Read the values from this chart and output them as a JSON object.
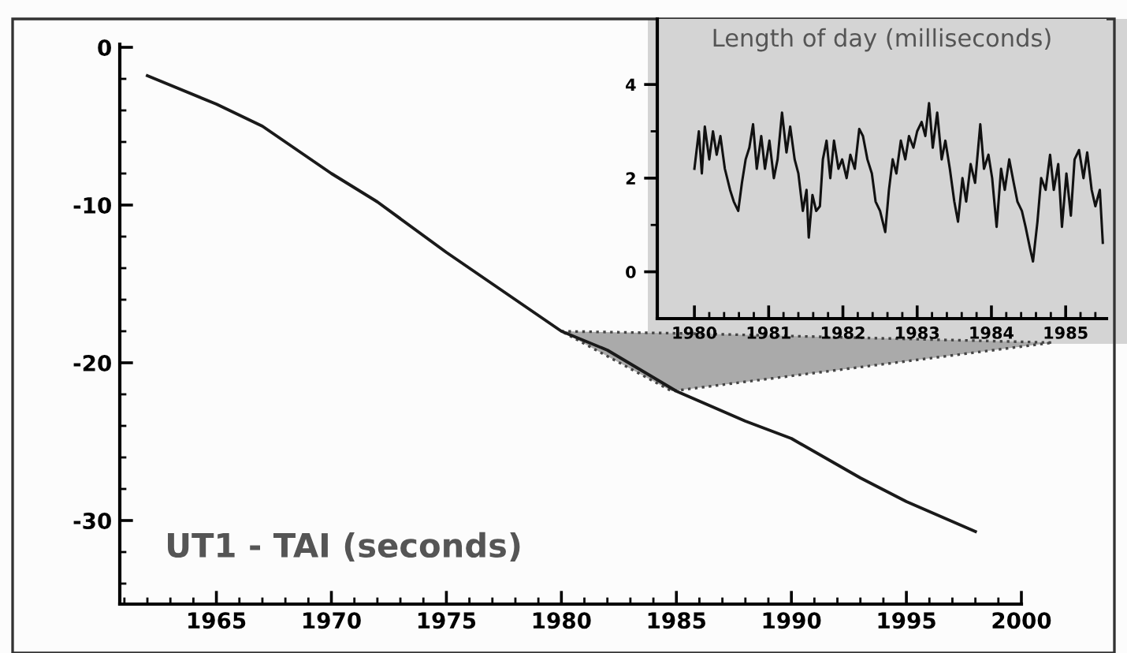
{
  "chart_data": [
    {
      "type": "line",
      "ylabel": "UT1 - TAI (seconds)",
      "x": [
        1962,
        1965,
        1967,
        1970,
        1972,
        1975,
        1977,
        1980,
        1982,
        1983.5,
        1985,
        1988,
        1990,
        1993,
        1995,
        1998
      ],
      "series": [
        {
          "color": "#1a1a1a",
          "values": [
            -1.8,
            -3.6,
            -5.0,
            -8.0,
            -9.8,
            -13.0,
            -15.0,
            -18.0,
            -19.2,
            -20.5,
            -21.8,
            -23.7,
            -24.8,
            -27.3,
            -28.8,
            -30.7
          ]
        }
      ],
      "xlim": [
        1960.8,
        2000
      ],
      "ylim": [
        -35.3,
        0.2
      ],
      "xticks": [
        {
          "value": 1961,
          "label": null
        },
        {
          "value": 1962,
          "label": null
        },
        {
          "value": 1963,
          "label": null
        },
        {
          "value": 1964,
          "label": null
        },
        1965,
        {
          "value": 1966,
          "label": null
        },
        {
          "value": 1967,
          "label": null
        },
        {
          "value": 1968,
          "label": null
        },
        {
          "value": 1969,
          "label": null
        },
        1970,
        {
          "value": 1971,
          "label": null
        },
        {
          "value": 1972,
          "label": null
        },
        {
          "value": 1973,
          "label": null
        },
        {
          "value": 1974,
          "label": null
        },
        1975,
        {
          "value": 1976,
          "label": null
        },
        {
          "value": 1977,
          "label": null
        },
        {
          "value": 1978,
          "label": null
        },
        {
          "value": 1979,
          "label": null
        },
        1980,
        {
          "value": 1981,
          "label": null
        },
        {
          "value": 1982,
          "label": null
        },
        {
          "value": 1983,
          "label": null
        },
        {
          "value": 1984,
          "label": null
        },
        1985,
        {
          "value": 1986,
          "label": null
        },
        {
          "value": 1987,
          "label": null
        },
        {
          "value": 1988,
          "label": null
        },
        {
          "value": 1989,
          "label": null
        },
        1990,
        {
          "value": 1991,
          "label": null
        },
        {
          "value": 1992,
          "label": null
        },
        {
          "value": 1993,
          "label": null
        },
        {
          "value": 1994,
          "label": null
        },
        1995,
        {
          "value": 1996,
          "label": null
        },
        {
          "value": 1997,
          "label": null
        },
        {
          "value": 1998,
          "label": null
        },
        {
          "value": 1999,
          "label": null
        },
        2000
      ],
      "yticks": [
        0,
        {
          "value": -2,
          "label": null
        },
        {
          "value": -4,
          "label": null
        },
        {
          "value": -6,
          "label": null
        },
        {
          "value": -8,
          "label": null
        },
        -10,
        {
          "value": -12,
          "label": null
        },
        {
          "value": -14,
          "label": null
        },
        {
          "value": -16,
          "label": null
        },
        {
          "value": -18,
          "label": null
        },
        -20,
        {
          "value": -22,
          "label": null
        },
        {
          "value": -24,
          "label": null
        },
        {
          "value": -26,
          "label": null
        },
        {
          "value": -28,
          "label": null
        },
        -30,
        {
          "value": -32,
          "label": null
        },
        {
          "value": -34,
          "label": null
        }
      ],
      "grid": false,
      "legend": false,
      "marker": "none",
      "line_style": "solid"
    },
    {
      "type": "line",
      "title": "Length of day (milliseconds)",
      "x": [
        1980.0,
        1980.06,
        1980.1,
        1980.14,
        1980.2,
        1980.25,
        1980.3,
        1980.35,
        1980.41,
        1980.48,
        1980.53,
        1980.59,
        1980.64,
        1980.69,
        1980.74,
        1980.79,
        1980.84,
        1980.9,
        1980.95,
        1981.01,
        1981.07,
        1981.12,
        1981.18,
        1981.24,
        1981.29,
        1981.35,
        1981.4,
        1981.46,
        1981.51,
        1981.54,
        1981.59,
        1981.64,
        1981.69,
        1981.73,
        1981.78,
        1981.83,
        1981.88,
        1981.94,
        1981.99,
        1982.05,
        1982.1,
        1982.16,
        1982.22,
        1982.27,
        1982.33,
        1982.39,
        1982.44,
        1982.5,
        1982.57,
        1982.62,
        1982.67,
        1982.72,
        1982.78,
        1982.84,
        1982.89,
        1982.95,
        1983.0,
        1983.06,
        1983.11,
        1983.16,
        1983.21,
        1983.27,
        1983.33,
        1983.38,
        1983.44,
        1983.5,
        1983.55,
        1983.61,
        1983.66,
        1983.72,
        1983.78,
        1983.85,
        1983.9,
        1983.96,
        1984.01,
        1984.07,
        1984.13,
        1984.18,
        1984.24,
        1984.3,
        1984.35,
        1984.41,
        1984.46,
        1984.52,
        1984.56,
        1984.62,
        1984.67,
        1984.73,
        1984.79,
        1984.84,
        1984.9,
        1984.95,
        1985.01,
        1985.07,
        1985.12,
        1985.18,
        1985.24,
        1985.29,
        1985.35,
        1985.4,
        1985.46,
        1985.5
      ],
      "series": [
        {
          "color": "#111111",
          "values": [
            2.2,
            3.0,
            2.1,
            3.1,
            2.4,
            3.0,
            2.5,
            2.9,
            2.2,
            1.75,
            1.5,
            1.3,
            1.9,
            2.4,
            2.65,
            3.15,
            2.2,
            2.9,
            2.2,
            2.8,
            2.0,
            2.4,
            3.4,
            2.55,
            3.1,
            2.4,
            2.1,
            1.3,
            1.75,
            0.73,
            1.64,
            1.3,
            1.4,
            2.4,
            2.8,
            2.0,
            2.8,
            2.2,
            2.4,
            2.0,
            2.5,
            2.2,
            3.05,
            2.9,
            2.4,
            2.1,
            1.5,
            1.3,
            0.85,
            1.75,
            2.4,
            2.1,
            2.8,
            2.4,
            2.9,
            2.65,
            3.0,
            3.2,
            2.9,
            3.6,
            2.65,
            3.4,
            2.4,
            2.8,
            2.2,
            1.5,
            1.07,
            2.0,
            1.5,
            2.3,
            1.9,
            3.15,
            2.2,
            2.5,
            2.0,
            0.96,
            2.2,
            1.75,
            2.4,
            1.9,
            1.5,
            1.3,
            0.96,
            0.5,
            0.22,
            1.07,
            2.0,
            1.75,
            2.5,
            1.75,
            2.3,
            0.96,
            2.1,
            1.2,
            2.4,
            2.6,
            2.0,
            2.55,
            1.75,
            1.4,
            1.75,
            0.62
          ]
        }
      ],
      "xlim": [
        1979.5,
        1985.55
      ],
      "ylim": [
        -1.0,
        5.4
      ],
      "xticks": [
        1980,
        {
          "value": 1980.2,
          "label": null
        },
        {
          "value": 1980.4,
          "label": null
        },
        {
          "value": 1980.6,
          "label": null
        },
        {
          "value": 1980.8,
          "label": null
        },
        1981,
        {
          "value": 1981.2,
          "label": null
        },
        {
          "value": 1981.4,
          "label": null
        },
        {
          "value": 1981.6,
          "label": null
        },
        {
          "value": 1981.8,
          "label": null
        },
        1982,
        {
          "value": 1982.2,
          "label": null
        },
        {
          "value": 1982.4,
          "label": null
        },
        {
          "value": 1982.6,
          "label": null
        },
        {
          "value": 1982.8,
          "label": null
        },
        1983,
        {
          "value": 1983.2,
          "label": null
        },
        {
          "value": 1983.4,
          "label": null
        },
        {
          "value": 1983.6,
          "label": null
        },
        {
          "value": 1983.8,
          "label": null
        },
        1984,
        {
          "value": 1984.2,
          "label": null
        },
        {
          "value": 1984.4,
          "label": null
        },
        {
          "value": 1984.6,
          "label": null
        },
        {
          "value": 1984.8,
          "label": null
        },
        1985,
        {
          "value": 1985.2,
          "label": null
        },
        {
          "value": 1985.4,
          "label": null
        }
      ],
      "yticks": [
        0,
        {
          "value": 1,
          "label": null
        },
        2,
        {
          "value": 3,
          "label": null
        },
        4
      ],
      "grid": false,
      "legend": false,
      "marker": "none",
      "line_style": "solid"
    }
  ]
}
